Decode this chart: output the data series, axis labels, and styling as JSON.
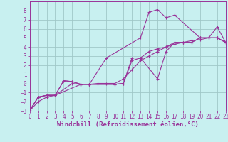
{
  "background_color": "#c8f0f0",
  "grid_color": "#a0c8c8",
  "line_color": "#993399",
  "xlabel": "Windchill (Refroidissement éolien,°C)",
  "xlabel_fontsize": 6.5,
  "tick_fontsize": 5.5,
  "xlim": [
    0,
    23
  ],
  "ylim": [
    -3,
    9
  ],
  "xticks": [
    0,
    1,
    2,
    3,
    4,
    5,
    6,
    7,
    8,
    9,
    10,
    11,
    12,
    13,
    14,
    15,
    16,
    17,
    18,
    19,
    20,
    21,
    22,
    23
  ],
  "yticks": [
    -3,
    -2,
    -1,
    0,
    1,
    2,
    3,
    4,
    5,
    6,
    7,
    8
  ],
  "series": [
    {
      "x": [
        0,
        1,
        2,
        3,
        4,
        5,
        6,
        7,
        9,
        13,
        14,
        15,
        16,
        17,
        20,
        21,
        22,
        23
      ],
      "y": [
        -3,
        -1.5,
        -1.3,
        -1.3,
        0.3,
        0.2,
        -0.1,
        -0.1,
        2.8,
        5.0,
        7.8,
        8.1,
        7.2,
        7.5,
        5.0,
        5.0,
        6.2,
        4.5
      ]
    },
    {
      "x": [
        0,
        1,
        2,
        3,
        4,
        5,
        6,
        7,
        10,
        11,
        12,
        13,
        15,
        16,
        17,
        18,
        19,
        20,
        21,
        22,
        23
      ],
      "y": [
        -3,
        -1.5,
        -1.3,
        -1.3,
        0.3,
        0.2,
        -0.1,
        -0.1,
        -0.1,
        0.0,
        2.8,
        2.8,
        0.5,
        3.5,
        4.5,
        4.5,
        4.5,
        5.0,
        5.0,
        5.0,
        4.5
      ]
    },
    {
      "x": [
        0,
        1,
        2,
        3,
        6,
        7,
        10,
        11,
        12,
        13,
        14,
        15,
        16,
        17,
        18,
        19,
        20,
        21,
        22,
        23
      ],
      "y": [
        -3,
        -1.5,
        -1.3,
        -1.3,
        -0.1,
        -0.1,
        -0.1,
        0.0,
        2.5,
        2.8,
        3.5,
        3.8,
        4.0,
        4.5,
        4.5,
        4.5,
        5.0,
        5.0,
        5.0,
        4.5
      ]
    },
    {
      "x": [
        0,
        1,
        2,
        3,
        5,
        6,
        7,
        8,
        9,
        10,
        11,
        12,
        13,
        14,
        15,
        16,
        17,
        18,
        19,
        20,
        21,
        22,
        23
      ],
      "y": [
        -3,
        -2,
        -1.5,
        -1.3,
        0.0,
        -0.1,
        -0.1,
        0.0,
        0.0,
        0.0,
        0.5,
        1.5,
        2.5,
        3.0,
        3.5,
        4.0,
        4.3,
        4.5,
        4.7,
        4.8,
        5.0,
        5.0,
        4.5
      ]
    }
  ]
}
